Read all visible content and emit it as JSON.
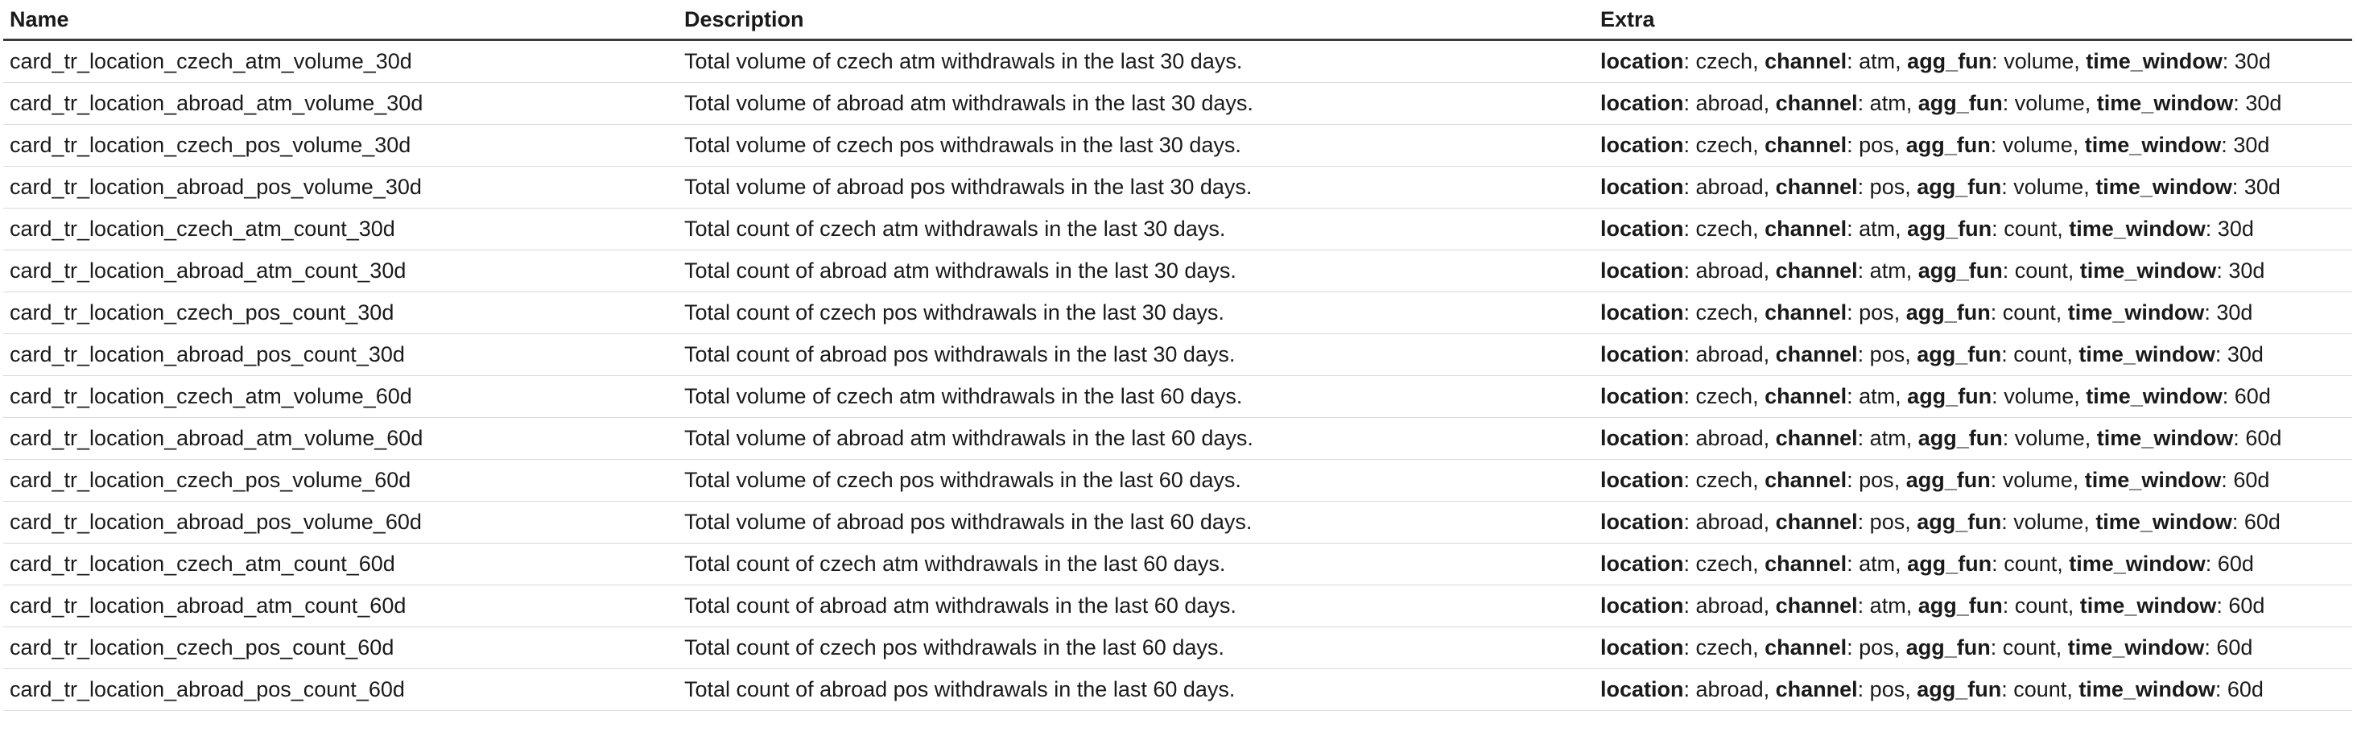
{
  "table": {
    "headers": {
      "name": "Name",
      "description": "Description",
      "extra": "Extra"
    },
    "extra_keys": [
      "location",
      "channel",
      "agg_fun",
      "time_window"
    ],
    "rows": [
      {
        "name": "card_tr_location_czech_atm_volume_30d",
        "description": "Total volume of czech atm withdrawals in the last 30 days.",
        "extra": {
          "location": "czech",
          "channel": "atm",
          "agg_fun": "volume",
          "time_window": "30d"
        }
      },
      {
        "name": "card_tr_location_abroad_atm_volume_30d",
        "description": "Total volume of abroad atm withdrawals in the last 30 days.",
        "extra": {
          "location": "abroad",
          "channel": "atm",
          "agg_fun": "volume",
          "time_window": "30d"
        }
      },
      {
        "name": "card_tr_location_czech_pos_volume_30d",
        "description": "Total volume of czech pos withdrawals in the last 30 days.",
        "extra": {
          "location": "czech",
          "channel": "pos",
          "agg_fun": "volume",
          "time_window": "30d"
        }
      },
      {
        "name": "card_tr_location_abroad_pos_volume_30d",
        "description": "Total volume of abroad pos withdrawals in the last 30 days.",
        "extra": {
          "location": "abroad",
          "channel": "pos",
          "agg_fun": "volume",
          "time_window": "30d"
        }
      },
      {
        "name": "card_tr_location_czech_atm_count_30d",
        "description": "Total count of czech atm withdrawals in the last 30 days.",
        "extra": {
          "location": "czech",
          "channel": "atm",
          "agg_fun": "count",
          "time_window": "30d"
        }
      },
      {
        "name": "card_tr_location_abroad_atm_count_30d",
        "description": "Total count of abroad atm withdrawals in the last 30 days.",
        "extra": {
          "location": "abroad",
          "channel": "atm",
          "agg_fun": "count",
          "time_window": "30d"
        }
      },
      {
        "name": "card_tr_location_czech_pos_count_30d",
        "description": "Total count of czech pos withdrawals in the last 30 days.",
        "extra": {
          "location": "czech",
          "channel": "pos",
          "agg_fun": "count",
          "time_window": "30d"
        }
      },
      {
        "name": "card_tr_location_abroad_pos_count_30d",
        "description": "Total count of abroad pos withdrawals in the last 30 days.",
        "extra": {
          "location": "abroad",
          "channel": "pos",
          "agg_fun": "count",
          "time_window": "30d"
        }
      },
      {
        "name": "card_tr_location_czech_atm_volume_60d",
        "description": "Total volume of czech atm withdrawals in the last 60 days.",
        "extra": {
          "location": "czech",
          "channel": "atm",
          "agg_fun": "volume",
          "time_window": "60d"
        }
      },
      {
        "name": "card_tr_location_abroad_atm_volume_60d",
        "description": "Total volume of abroad atm withdrawals in the last 60 days.",
        "extra": {
          "location": "abroad",
          "channel": "atm",
          "agg_fun": "volume",
          "time_window": "60d"
        }
      },
      {
        "name": "card_tr_location_czech_pos_volume_60d",
        "description": "Total volume of czech pos withdrawals in the last 60 days.",
        "extra": {
          "location": "czech",
          "channel": "pos",
          "agg_fun": "volume",
          "time_window": "60d"
        }
      },
      {
        "name": "card_tr_location_abroad_pos_volume_60d",
        "description": "Total volume of abroad pos withdrawals in the last 60 days.",
        "extra": {
          "location": "abroad",
          "channel": "pos",
          "agg_fun": "volume",
          "time_window": "60d"
        }
      },
      {
        "name": "card_tr_location_czech_atm_count_60d",
        "description": "Total count of czech atm withdrawals in the last 60 days.",
        "extra": {
          "location": "czech",
          "channel": "atm",
          "agg_fun": "count",
          "time_window": "60d"
        }
      },
      {
        "name": "card_tr_location_abroad_atm_count_60d",
        "description": "Total count of abroad atm withdrawals in the last 60 days.",
        "extra": {
          "location": "abroad",
          "channel": "atm",
          "agg_fun": "count",
          "time_window": "60d"
        }
      },
      {
        "name": "card_tr_location_czech_pos_count_60d",
        "description": "Total count of czech pos withdrawals in the last 60 days.",
        "extra": {
          "location": "czech",
          "channel": "pos",
          "agg_fun": "count",
          "time_window": "60d"
        }
      },
      {
        "name": "card_tr_location_abroad_pos_count_60d",
        "description": "Total count of abroad pos withdrawals in the last 60 days.",
        "extra": {
          "location": "abroad",
          "channel": "pos",
          "agg_fun": "count",
          "time_window": "60d"
        }
      }
    ]
  }
}
